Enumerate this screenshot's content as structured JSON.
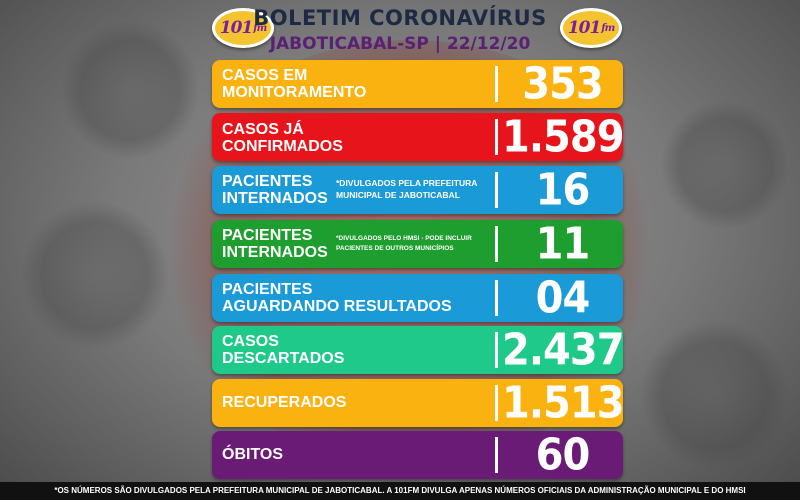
{
  "header": {
    "title": "BOLETIM CORONAVÍRUS",
    "subtitle": "JABOTICABAL-SP | 22/12/20",
    "logo_text": "101",
    "logo_suffix": "fm"
  },
  "rows": [
    {
      "label_line1": "CASOS EM",
      "label_line2": "MONITORAMENTO",
      "note": "",
      "value": "353",
      "color": "#f9b20f"
    },
    {
      "label_line1": "CASOS JÁ",
      "label_line2": "CONFIRMADOS",
      "note": "",
      "value": "1.589",
      "color": "#e8141c"
    },
    {
      "label_line1": "PACIENTES",
      "label_line2": "INTERNADOS",
      "note": "*DIVULGADOS PELA PREFEITURA MUNICIPAL DE JABOTICABAL",
      "value": "16",
      "color": "#1a9ad6"
    },
    {
      "label_line1": "PACIENTES",
      "label_line2": "INTERNADOS",
      "note": "*DIVULGADOS PELO HMSI - PODE INCLUIR PACIENTES DE OUTROS MUNICÍPIOS",
      "value": "11",
      "color": "#1e9e2e"
    },
    {
      "label_line1": "PACIENTES",
      "label_line2": "AGUARDANDO RESULTADOS",
      "note": "",
      "value": "04",
      "color": "#1a9ad6"
    },
    {
      "label_line1": "CASOS",
      "label_line2": "DESCARTADOS",
      "note": "",
      "value": "2.437",
      "color": "#1fc98a"
    },
    {
      "label_line1": "RECUPERADOS",
      "label_line2": "",
      "note": "",
      "value": "1.513",
      "color": "#f9b20f"
    },
    {
      "label_line1": "ÓBITOS",
      "label_line2": "",
      "note": "",
      "value": "60",
      "color": "#6a1b76"
    }
  ],
  "footer": {
    "text": "*OS NÚMEROS SÃO DIVULGADOS PELA PREFEITURA MUNICIPAL DE JABOTICABAL. A 101FM DIVULGA APENAS NÚMEROS OFICIAIS DA ADMINISTRAÇÃO MUNICIPAL E DO HMSI"
  }
}
